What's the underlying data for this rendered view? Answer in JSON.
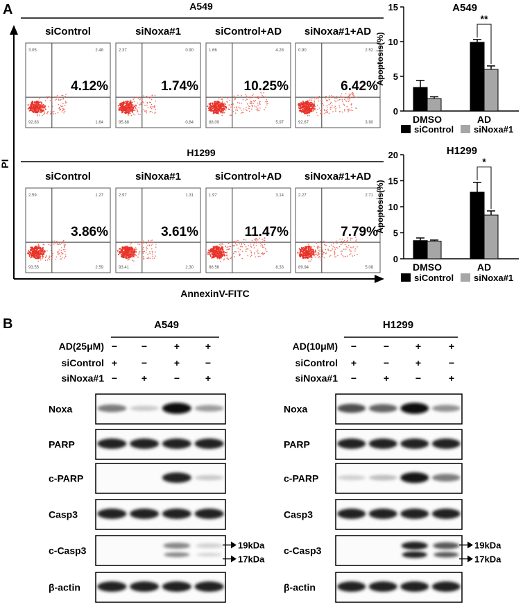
{
  "panel_a": {
    "label": "A",
    "y_axis_label": "PI",
    "x_axis_label": "AnnexinV-FITC",
    "rows": [
      {
        "cell_line": "A549",
        "plots": [
          {
            "title": "siControl",
            "percent": "4.12%",
            "quadrants": [
              "3.05",
              "2.48",
              "92.83",
              "1.64"
            ]
          },
          {
            "title": "siNoxa#1",
            "percent": "1.74%",
            "quadrants": [
              "2.37",
              "0.90",
              "95.88",
              "0.84"
            ]
          },
          {
            "title": "siControl+AD",
            "percent": "10.25%",
            "quadrants": [
              "1.66",
              "4.28",
              "88.09",
              "5.97"
            ]
          },
          {
            "title": "siNoxa#1+AD",
            "percent": "6.42%",
            "quadrants": [
              "0.90",
              "2.52",
              "92.67",
              "3.90"
            ]
          }
        ]
      },
      {
        "cell_line": "H1299",
        "plots": [
          {
            "title": "siControl",
            "percent": "3.86%",
            "quadrants": [
              "2.59",
              "1.27",
              "93.55",
              "2.59"
            ]
          },
          {
            "title": "siNoxa#1",
            "percent": "3.61%",
            "quadrants": [
              "2.97",
              "1.31",
              "93.41",
              "2.30"
            ]
          },
          {
            "title": "siControl+AD",
            "percent": "11.47%",
            "quadrants": [
              "1.97",
              "3.14",
              "86.56",
              "8.33"
            ]
          },
          {
            "title": "siNoxa#1+AD",
            "percent": "7.79%",
            "quadrants": [
              "2.27",
              "2.71",
              "89.94",
              "5.08"
            ]
          }
        ]
      }
    ]
  },
  "chart_data": [
    {
      "type": "bar",
      "title": "A549",
      "ylabel": "Apoptosis(%)",
      "categories": [
        "DMSO",
        "AD"
      ],
      "ylim": [
        0,
        15
      ],
      "yticks": [
        "0",
        "5",
        "10",
        "15"
      ],
      "series": [
        {
          "name": "siControl",
          "color": "#000000",
          "values": [
            3.4,
            9.9
          ],
          "errors": [
            1.0,
            0.4
          ]
        },
        {
          "name": "siNoxa#1",
          "color": "#a6a6a6",
          "values": [
            1.8,
            6.0
          ],
          "errors": [
            0.25,
            0.5
          ]
        }
      ],
      "significance": "**",
      "legend": "bottom"
    },
    {
      "type": "bar",
      "title": "H1299",
      "ylabel": "Apoptosis(%)",
      "categories": [
        "DMSO",
        "AD"
      ],
      "ylim": [
        0,
        20
      ],
      "yticks": [
        "0",
        "5",
        "10",
        "15",
        "20"
      ],
      "series": [
        {
          "name": "siControl",
          "color": "#000000",
          "values": [
            3.5,
            12.8
          ],
          "errors": [
            0.5,
            1.9
          ]
        },
        {
          "name": "siNoxa#1",
          "color": "#a6a6a6",
          "values": [
            3.4,
            8.4
          ],
          "errors": [
            0.2,
            0.8
          ]
        }
      ],
      "significance": "*",
      "legend": "bottom"
    }
  ],
  "panel_b": {
    "label": "B",
    "blots": [
      {
        "cell_line": "A549",
        "conditions": [
          {
            "label": "AD(25μM)",
            "marks": [
              "−",
              "−",
              "+",
              "+"
            ]
          },
          {
            "label": "siControl",
            "marks": [
              "+",
              "−",
              "+",
              "−"
            ]
          },
          {
            "label": "siNoxa#1",
            "marks": [
              "−",
              "+",
              "−",
              "+"
            ]
          }
        ],
        "rows": [
          {
            "label": "Noxa",
            "intensity": [
              0.5,
              0.15,
              1.0,
              0.35
            ]
          },
          {
            "label": "PARP",
            "intensity": [
              0.9,
              0.9,
              0.9,
              0.9
            ]
          },
          {
            "label": "c-PARP",
            "intensity": [
              0,
              0,
              0.9,
              0.15
            ]
          },
          {
            "label": "Casp3",
            "intensity": [
              0.9,
              0.9,
              0.9,
              0.9
            ]
          },
          {
            "label": "c-Casp3",
            "intensity": [
              0,
              0,
              0.45,
              0.12
            ],
            "markers": [
              "19kDa",
              "17kDa"
            ]
          },
          {
            "label": "β-actin",
            "intensity": [
              0.9,
              0.9,
              0.9,
              0.9
            ]
          }
        ]
      },
      {
        "cell_line": "H1299",
        "conditions": [
          {
            "label": "AD(10μM)",
            "marks": [
              "−",
              "−",
              "+",
              "+"
            ]
          },
          {
            "label": "siControl",
            "marks": [
              "+",
              "−",
              "+",
              "−"
            ]
          },
          {
            "label": "siNoxa#1",
            "marks": [
              "−",
              "+",
              "−",
              "+"
            ]
          }
        ],
        "rows": [
          {
            "label": "Noxa",
            "intensity": [
              0.7,
              0.6,
              1.0,
              0.4
            ]
          },
          {
            "label": "PARP",
            "intensity": [
              0.9,
              0.9,
              0.9,
              0.9
            ]
          },
          {
            "label": "c-PARP",
            "intensity": [
              0.12,
              0.2,
              0.95,
              0.5
            ]
          },
          {
            "label": "Casp3",
            "intensity": [
              0.9,
              0.9,
              0.9,
              0.9
            ]
          },
          {
            "label": "c-Casp3",
            "intensity": [
              0,
              0,
              0.9,
              0.65
            ],
            "markers": [
              "19kDa",
              "17kDa"
            ]
          },
          {
            "label": "β-actin",
            "intensity": [
              0.9,
              0.9,
              0.9,
              0.9
            ]
          }
        ]
      }
    ]
  }
}
